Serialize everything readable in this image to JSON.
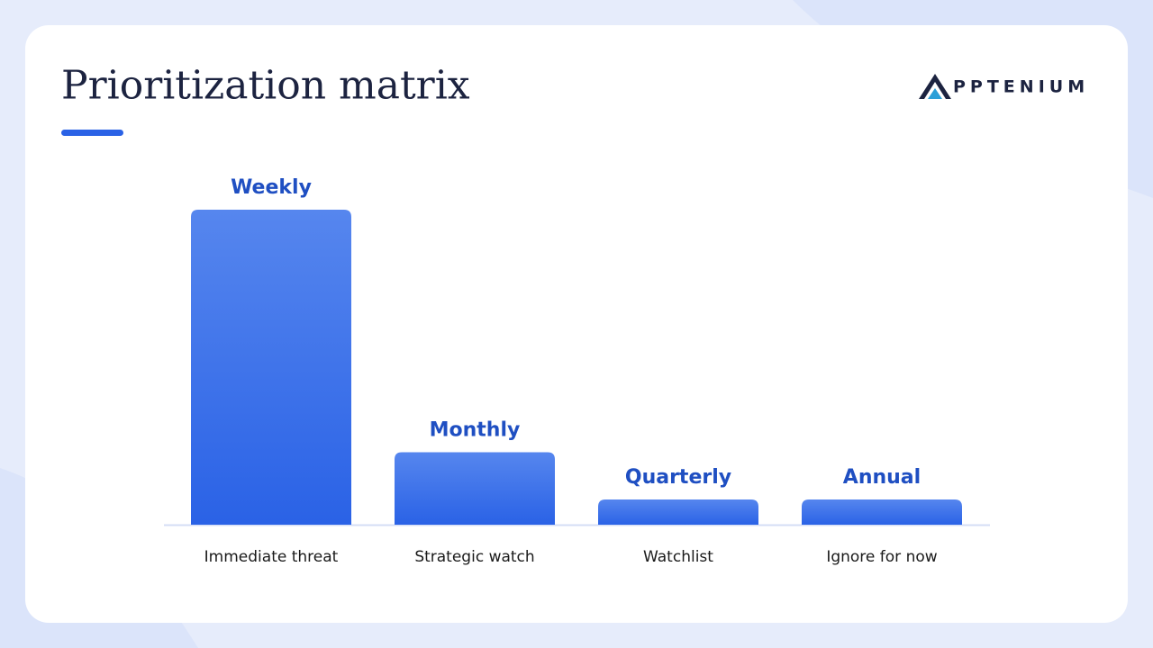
{
  "chart_data": {
    "type": "bar",
    "title": "Prioritization matrix",
    "brand": "PPTENIUM",
    "categories": [
      "Immediate threat",
      "Strategic watch",
      "Watchlist",
      "Ignore for now"
    ],
    "values": [
      100,
      23,
      8,
      8
    ],
    "bar_labels": [
      "Weekly",
      "Monthly",
      "Quarterly",
      "Annual"
    ],
    "ylim": [
      0,
      100
    ],
    "color": "#2a62e6"
  }
}
